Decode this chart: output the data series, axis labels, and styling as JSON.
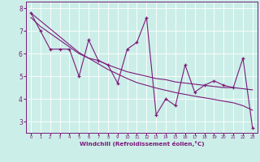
{
  "x": [
    0,
    1,
    2,
    3,
    4,
    5,
    6,
    7,
    8,
    9,
    10,
    11,
    12,
    13,
    14,
    15,
    16,
    17,
    18,
    19,
    20,
    21,
    22,
    23
  ],
  "y_data": [
    7.8,
    7.0,
    6.2,
    6.2,
    6.2,
    5.0,
    6.6,
    5.7,
    5.5,
    4.7,
    6.2,
    6.5,
    7.6,
    3.3,
    4.0,
    3.7,
    5.5,
    4.3,
    4.6,
    4.8,
    4.6,
    4.5,
    5.8,
    2.7
  ],
  "y_trend1": [
    7.6,
    7.2,
    6.9,
    6.6,
    6.3,
    6.0,
    5.8,
    5.7,
    5.5,
    5.35,
    5.2,
    5.1,
    5.0,
    4.9,
    4.85,
    4.75,
    4.7,
    4.65,
    4.6,
    4.55,
    4.5,
    4.5,
    4.45,
    4.4
  ],
  "y_trend2": [
    7.8,
    7.45,
    7.1,
    6.75,
    6.4,
    6.05,
    5.8,
    5.55,
    5.3,
    5.1,
    4.9,
    4.72,
    4.6,
    4.48,
    4.38,
    4.28,
    4.2,
    4.12,
    4.05,
    3.98,
    3.9,
    3.83,
    3.7,
    3.5
  ],
  "line_color": "#7b1a7b",
  "bg_color": "#cceee8",
  "xlabel": "Windchill (Refroidissement éolien,°C)",
  "ylim": [
    2.5,
    8.3
  ],
  "xlim": [
    -0.5,
    23.5
  ],
  "yticks": [
    3,
    4,
    5,
    6,
    7,
    8
  ],
  "xticks": [
    0,
    1,
    2,
    3,
    4,
    5,
    6,
    7,
    8,
    9,
    10,
    11,
    12,
    13,
    14,
    15,
    16,
    17,
    18,
    19,
    20,
    21,
    22,
    23
  ],
  "grid_color": "#b0ddd8"
}
